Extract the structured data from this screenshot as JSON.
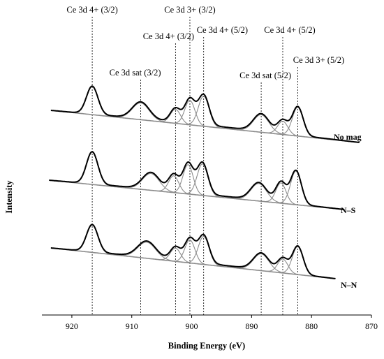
{
  "chart_data": {
    "type": "line",
    "title": "",
    "xlabel": "Binding Energy (eV)",
    "ylabel": "Intensity",
    "xlim": [
      925,
      870
    ],
    "x_reversed": true,
    "xticks": [
      920,
      910,
      900,
      890,
      880,
      870
    ],
    "grid": false,
    "reference_lines": [
      {
        "label": "Ce 3d 4+ (3/2)",
        "x": 916.6
      },
      {
        "label": "Ce 3d sat (3/2)",
        "x": 908.5
      },
      {
        "label": "Ce 3d 4+ (3/2)",
        "x": 902.7
      },
      {
        "label": "Ce 3d 3+ (3/2)",
        "x": 900.3
      },
      {
        "label": "Ce 3d 4+ (5/2)",
        "x": 898.0
      },
      {
        "label": "Ce 3d sat (5/2)",
        "x": 888.4
      },
      {
        "label": "Ce 3d 4+ (5/2)",
        "x": 884.8
      },
      {
        "label": "Ce 3d 3+ (5/2)",
        "x": 882.3
      }
    ],
    "series": [
      {
        "name": "No mag"
      },
      {
        "name": "N–S"
      },
      {
        "name": "N–N"
      }
    ],
    "envelope_color": "#000000",
    "component_color": "#8c8c8c"
  }
}
